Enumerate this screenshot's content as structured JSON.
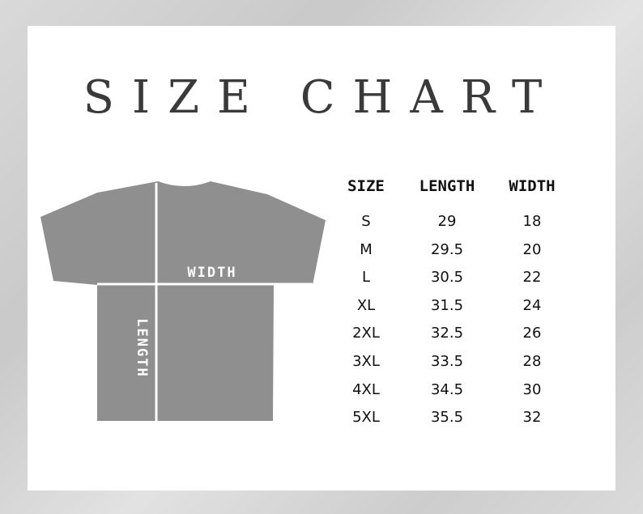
{
  "title": "SIZE CHART",
  "diagram": {
    "width_label": "WIDTH",
    "length_label": "LENGTH",
    "shirt_color": "#8f8f8f"
  },
  "table": {
    "headers": [
      "SIZE",
      "LENGTH",
      "WIDTH"
    ],
    "rows": [
      [
        "S",
        "29",
        "18"
      ],
      [
        "M",
        "29.5",
        "20"
      ],
      [
        "L",
        "30.5",
        "22"
      ],
      [
        "XL",
        "31.5",
        "24"
      ],
      [
        "2XL",
        "32.5",
        "26"
      ],
      [
        "3XL",
        "33.5",
        "28"
      ],
      [
        "4XL",
        "34.5",
        "30"
      ],
      [
        "5XL",
        "35.5",
        "32"
      ]
    ]
  }
}
